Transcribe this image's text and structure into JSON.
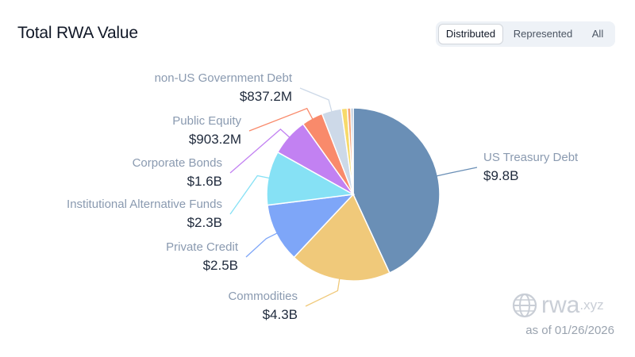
{
  "header": {
    "title": "Total RWA Value",
    "tabs": [
      {
        "label": "Distributed",
        "active": true
      },
      {
        "label": "Represented",
        "active": false
      },
      {
        "label": "All",
        "active": false
      }
    ]
  },
  "footer": {
    "brand": "rwa",
    "brand_suffix": ".xyz",
    "as_of": "as of 01/26/2026"
  },
  "chart_data": {
    "type": "pie",
    "title": "Total RWA Value",
    "unit": "USD",
    "slices": [
      {
        "name": "US Treasury Debt",
        "value": 9.8,
        "display": "$9.8B",
        "color": "#6a8fb6"
      },
      {
        "name": "Commodities",
        "value": 4.3,
        "display": "$4.3B",
        "color": "#f0c97a"
      },
      {
        "name": "Private Credit",
        "value": 2.5,
        "display": "$2.5B",
        "color": "#7ea6f8"
      },
      {
        "name": "Institutional Alternative Funds",
        "value": 2.3,
        "display": "$2.3B",
        "color": "#86e1f5"
      },
      {
        "name": "Corporate Bonds",
        "value": 1.6,
        "display": "$1.6B",
        "color": "#c281f2"
      },
      {
        "name": "Public Equity",
        "value": 0.9032,
        "display": "$903.2M",
        "color": "#f98a6b"
      },
      {
        "name": "non-US Government Debt",
        "value": 0.8372,
        "display": "$837.2M",
        "color": "#cdd9e8"
      },
      {
        "name": "",
        "value": 0.25,
        "display": "",
        "color": "#f7da6a"
      },
      {
        "name": "",
        "value": 0.15,
        "display": "",
        "color": "#f6a57a"
      },
      {
        "name": "",
        "value": 0.1,
        "display": "",
        "color": "#aebfd4"
      }
    ]
  }
}
